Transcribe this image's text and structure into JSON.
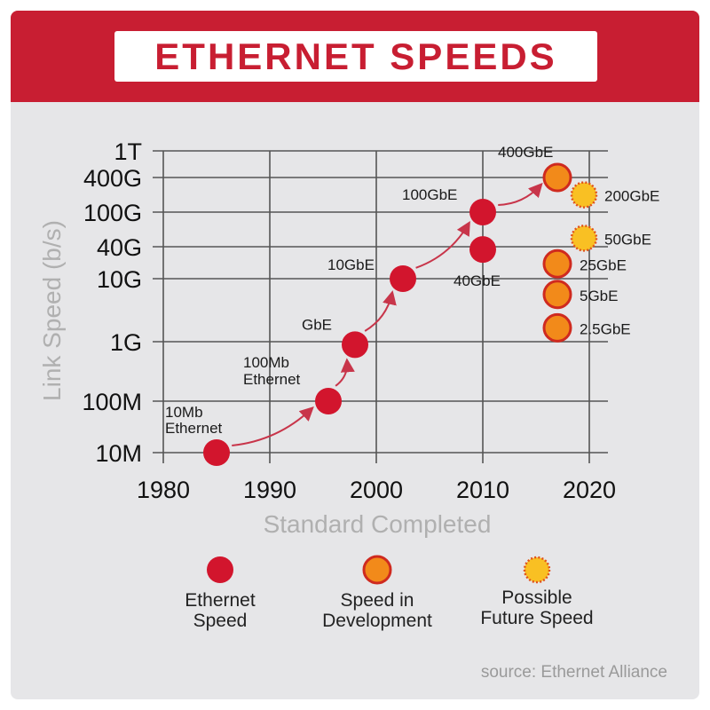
{
  "header": {
    "title": "ETHERNET SPEEDS"
  },
  "source": "source: Ethernet Alliance",
  "legend": [
    {
      "kind": "established",
      "label_lines": [
        "Ethernet",
        "Speed"
      ]
    },
    {
      "kind": "development",
      "label_lines": [
        "Speed in",
        "Development"
      ]
    },
    {
      "kind": "future",
      "label_lines": [
        "Possible",
        "Future Speed"
      ]
    }
  ],
  "colors": {
    "brand_red": "#c81e32",
    "established": "#d2152d",
    "development": "#f28a1a",
    "development_ring": "#cf2a1f",
    "future": "#f9c023",
    "future_ring": "#e0521c",
    "arrow": "#c8354a",
    "grid": "#555555",
    "axis_label": "#b0b0b0"
  },
  "chart_data": {
    "type": "scatter",
    "title": "ETHERNET SPEEDS",
    "xlabel": "Standard Completed",
    "ylabel": "Link Speed (b/s)",
    "x_ticks": [
      1980,
      1990,
      2000,
      2010,
      2020
    ],
    "xlim": [
      1980,
      2022
    ],
    "y_scale": "log10 (bits per second)",
    "y_ticks": [
      {
        "label": "10M",
        "log10": 7
      },
      {
        "label": "100M",
        "log10": 8
      },
      {
        "label": "1G",
        "log10": 9
      },
      {
        "label": "10G",
        "log10": 10
      },
      {
        "label": "40G",
        "log10": 10.602
      },
      {
        "label": "100G",
        "log10": 11
      },
      {
        "label": "400G",
        "log10": 11.602
      },
      {
        "label": "1T",
        "log10": 12
      }
    ],
    "series": [
      {
        "name": "Ethernet Speed",
        "kind": "established",
        "points": [
          {
            "year": 1985,
            "log10": 7,
            "speed": "10M",
            "label": "10Mb Ethernet"
          },
          {
            "year": 1995.5,
            "log10": 8,
            "speed": "100M",
            "label": "100Mb Ethernet"
          },
          {
            "year": 1998,
            "log10": 8.95,
            "speed": "1G",
            "label": "GbE"
          },
          {
            "year": 2002.5,
            "log10": 10,
            "speed": "10G",
            "label": "10GbE"
          },
          {
            "year": 2010,
            "log10": 10.55,
            "speed": "40G",
            "label": "40GbE"
          },
          {
            "year": 2010,
            "log10": 11,
            "speed": "100G",
            "label": "100GbE"
          }
        ]
      },
      {
        "name": "Speed in Development",
        "kind": "development",
        "points": [
          {
            "year": 2017,
            "log10": 11.602,
            "speed": "400G",
            "label": "400GbE"
          },
          {
            "year": 2017,
            "log10": 10.28,
            "speed": "25G",
            "label": "25GbE"
          },
          {
            "year": 2017,
            "log10": 9.75,
            "speed": "5G",
            "label": "5GbE"
          },
          {
            "year": 2017,
            "log10": 9.22,
            "speed": "2.5G",
            "label": "2.5GbE"
          }
        ]
      },
      {
        "name": "Possible Future Speed",
        "kind": "future",
        "points": [
          {
            "year": 2019.5,
            "log10": 11.3,
            "speed": "200G",
            "label": "200GbE"
          },
          {
            "year": 2019.5,
            "log10": 10.7,
            "speed": "50G",
            "label": "50GbE"
          }
        ]
      }
    ],
    "arrows": [
      {
        "from": "10Mb Ethernet",
        "to": "100Mb Ethernet"
      },
      {
        "from": "100Mb Ethernet",
        "to": "GbE"
      },
      {
        "from": "GbE",
        "to": "10GbE"
      },
      {
        "from": "10GbE",
        "to": "100GbE"
      },
      {
        "from": "100GbE",
        "to": "400GbE"
      }
    ]
  }
}
